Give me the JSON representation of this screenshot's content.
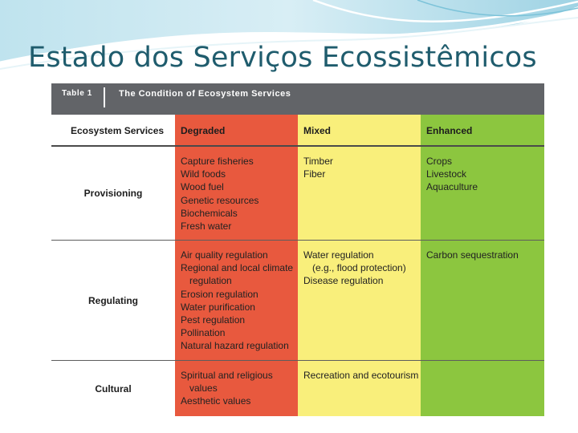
{
  "slide": {
    "title": "Estado dos Serviços Ecossistêmicos"
  },
  "table": {
    "label": "Table 1",
    "title": "The Condition of Ecosystem Services",
    "headers": {
      "services": "Ecosystem Services",
      "degraded": "Degraded",
      "mixed": "Mixed",
      "enhanced": "Enhanced"
    },
    "rows": [
      {
        "label": "Provisioning",
        "degraded": [
          "Capture fisheries",
          "Wild foods",
          "Wood fuel",
          "Genetic resources",
          "Biochemicals",
          "Fresh water"
        ],
        "mixed": [
          "Timber",
          "Fiber"
        ],
        "enhanced": [
          "Crops",
          "Livestock",
          "Aquaculture"
        ]
      },
      {
        "label": "Regulating",
        "degraded": [
          "Air quality regulation",
          "Regional and local climate",
          "regulation",
          "Erosion regulation",
          "Water purification",
          "Pest regulation",
          "Pollination",
          "Natural hazard regulation"
        ],
        "mixed": [
          "Water regulation",
          "(e.g., flood protection)",
          "Disease regulation"
        ],
        "enhanced": [
          "Carbon sequestration"
        ]
      },
      {
        "label": "Cultural",
        "degraded": [
          "Spiritual and religious",
          "values",
          "Aesthetic values"
        ],
        "mixed": [
          "Recreation and ecotourism"
        ],
        "enhanced": []
      }
    ]
  },
  "colors": {
    "title_text": "#1f5c6d",
    "title_bar": "#626468",
    "degraded": "#e8593e",
    "mixed": "#f9ef7b",
    "enhanced": "#8cc63f"
  }
}
